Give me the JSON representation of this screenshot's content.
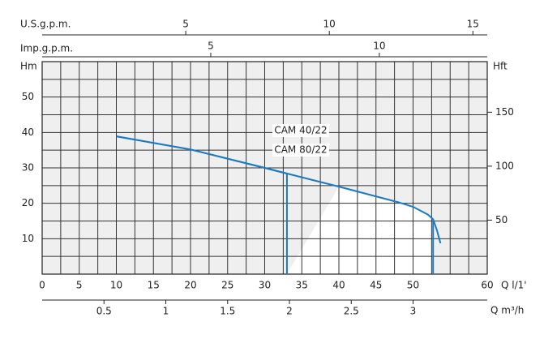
{
  "chart_data": {
    "type": "line",
    "xlabel": "Q l/1'",
    "ylabel": "Hm",
    "y2label": "Hft",
    "xlim": [
      0,
      60
    ],
    "xticks": [
      0,
      5,
      10,
      15,
      20,
      25,
      30,
      35,
      40,
      45,
      50,
      60
    ],
    "xgrid": [
      2.5,
      5,
      7.5,
      10,
      12.5,
      15,
      17.5,
      20,
      22.5,
      25,
      27.5,
      30,
      32.5,
      35,
      37.5,
      40,
      42.5,
      45,
      47.5,
      50,
      52.5,
      55,
      57.5
    ],
    "ylim": [
      0,
      60
    ],
    "yticks": [
      10,
      20,
      30,
      40,
      50
    ],
    "ygrid": [
      5,
      10,
      15,
      20,
      25,
      30,
      35,
      40,
      45,
      50,
      55
    ],
    "y2lim": [
      0,
      196.85
    ],
    "y2ticks": [
      50,
      100,
      150
    ],
    "top_axes": [
      {
        "label": "U.S.g.p.m.",
        "lim": [
          0,
          15.5
        ],
        "ticks": [
          5,
          10,
          15
        ]
      },
      {
        "label": "Imp.g.p.m.",
        "lim": [
          0,
          13.2
        ],
        "ticks": [
          5,
          10
        ]
      }
    ],
    "bottom_axis": {
      "label": "Q m³/h",
      "lim": [
        0,
        3.6
      ],
      "ticks": [
        0.5,
        1,
        1.5,
        2,
        2.5,
        3
      ]
    },
    "series": [
      {
        "name": "CAM 40/22",
        "color": "#1a7ac4",
        "max_flow": 33,
        "x": [
          10,
          20,
          30,
          33
        ],
        "values": [
          38.9,
          35.2,
          30,
          28.4
        ]
      },
      {
        "name": "CAM 80/22",
        "color": "#1a7ac4",
        "max_flow": 52.7,
        "x": [
          10,
          20,
          30,
          40,
          48,
          50,
          52,
          52.7,
          53.2,
          53.7
        ],
        "values": [
          38.9,
          35.2,
          30,
          24.7,
          20.3,
          19,
          16.8,
          15.5,
          12.5,
          8.7
        ]
      }
    ]
  }
}
